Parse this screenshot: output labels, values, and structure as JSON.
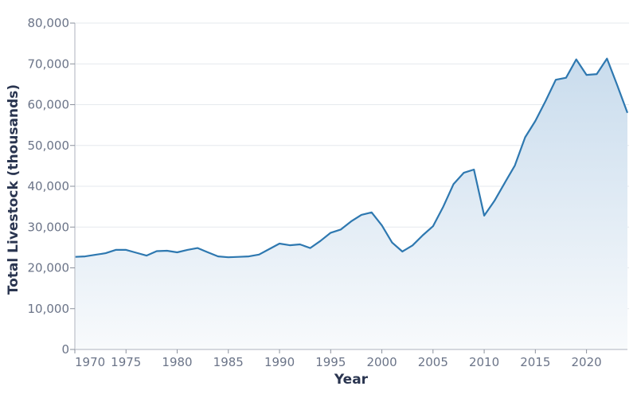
{
  "chart_data": {
    "type": "area",
    "title": "",
    "xlabel": "Year",
    "ylabel": "Total Livestock (thousands)",
    "xlim": [
      1970,
      2024
    ],
    "ylim": [
      0,
      80000
    ],
    "grid": true,
    "legend": null,
    "x_ticks": [
      1970,
      1975,
      1980,
      1985,
      1990,
      1995,
      2000,
      2005,
      2010,
      2015,
      2020
    ],
    "y_ticks": [
      0,
      10000,
      20000,
      30000,
      40000,
      50000,
      60000,
      70000,
      80000
    ],
    "y_tick_labels": [
      "0",
      "10,000",
      "20,000",
      "30,000",
      "40,000",
      "50,000",
      "60,000",
      "70,000",
      "80,000"
    ],
    "x": [
      1970,
      1971,
      1972,
      1973,
      1974,
      1975,
      1976,
      1977,
      1978,
      1979,
      1980,
      1981,
      1982,
      1983,
      1984,
      1985,
      1986,
      1987,
      1988,
      1989,
      1990,
      1991,
      1992,
      1993,
      1994,
      1995,
      1996,
      1997,
      1998,
      1999,
      2000,
      2001,
      2002,
      2003,
      2004,
      2005,
      2006,
      2007,
      2008,
      2009,
      2010,
      2011,
      2012,
      2013,
      2014,
      2015,
      2016,
      2017,
      2018,
      2019,
      2020,
      2021,
      2022,
      2023,
      2024
    ],
    "series": [
      {
        "name": "Total Livestock",
        "color": "#2e78b0",
        "fill_top": "#c9dced",
        "fill_bottom": "#f8fafc",
        "values": [
          22700,
          22800,
          23200,
          23600,
          24400,
          24400,
          23700,
          23000,
          24100,
          24200,
          23800,
          24400,
          24850,
          23800,
          22800,
          22600,
          22700,
          22800,
          23250,
          24600,
          25950,
          25550,
          25750,
          24850,
          26600,
          28600,
          29400,
          31400,
          33000,
          33600,
          30400,
          26200,
          24000,
          25500,
          28000,
          30200,
          35000,
          40500,
          43300,
          44100,
          32800,
          36400,
          40800,
          45100,
          52000,
          56000,
          60900,
          66100,
          66600,
          71100,
          67300,
          67500,
          71300,
          64800,
          58000
        ]
      }
    ]
  },
  "axes": {
    "x_title": "Year",
    "y_title": "Total Livestock (thousands)"
  }
}
